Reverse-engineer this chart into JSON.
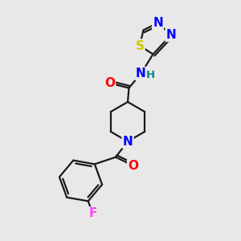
{
  "bg_color": "#e8e8e8",
  "bond_color": "#1a1a1a",
  "atom_colors": {
    "O": "#ff0000",
    "N": "#0000ff",
    "S": "#cccc00",
    "F": "#ff44ff",
    "H": "#008888",
    "C": "#1a1a1a"
  },
  "figsize": [
    3.0,
    3.0
  ],
  "dpi": 100
}
